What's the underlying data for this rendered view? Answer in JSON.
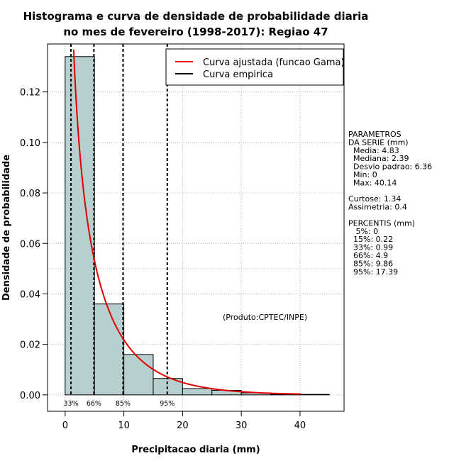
{
  "chart_data": {
    "type": "histogram",
    "title": [
      "Histograma e curva de densidade de probabilidade diaria",
      "no mes de fevereiro (1998-2017): Regiao 47"
    ],
    "xlabel": "Precipitacao diaria (mm)",
    "ylabel": "Densidade de probabilidade",
    "xlim": [
      -3,
      47.5
    ],
    "ylim": [
      -0.0065,
      0.139
    ],
    "x_ticks": [
      0,
      10,
      20,
      30,
      40
    ],
    "y_ticks": [
      0.0,
      0.02,
      0.04,
      0.06,
      0.08,
      0.1,
      0.12
    ],
    "y_tick_labels": [
      "0.00",
      "0.02",
      "0.04",
      "0.06",
      "0.08",
      "0.10",
      "0.12"
    ],
    "grid": true,
    "bins": [
      {
        "x0": 0,
        "x1": 5,
        "density": 0.134
      },
      {
        "x0": 5,
        "x1": 10,
        "density": 0.036
      },
      {
        "x0": 10,
        "x1": 15,
        "density": 0.016
      },
      {
        "x0": 15,
        "x1": 20,
        "density": 0.0065
      },
      {
        "x0": 20,
        "x1": 25,
        "density": 0.0025
      },
      {
        "x0": 25,
        "x1": 30,
        "density": 0.0018
      },
      {
        "x0": 30,
        "x1": 35,
        "density": 0.0008
      },
      {
        "x0": 35,
        "x1": 40,
        "density": 0.0003
      },
      {
        "x0": 40,
        "x1": 45,
        "density": 0.0002
      }
    ],
    "gamma_fit": {
      "shape": 0.58,
      "scale": 8.33,
      "x_start": 0.3,
      "x_end": 40.14
    },
    "percentile_lines": [
      {
        "label": "33%",
        "x": 0.99
      },
      {
        "label": "66%",
        "x": 4.9
      },
      {
        "label": "85%",
        "x": 9.86
      },
      {
        "label": "95%",
        "x": 17.39
      }
    ],
    "legend": [
      {
        "label": "Curva ajustada (funcao Gama)",
        "color": "#e00000"
      },
      {
        "label": "Curva empirica",
        "color": "#000000"
      }
    ],
    "legend_position": "top-right",
    "credit": "(Produto:CPTEC/INPE)",
    "colors": {
      "bar_fill": "#b7cfcf",
      "fit_line": "#e00000",
      "grid": "#b0b0b0"
    }
  },
  "stats_panel": {
    "lines": [
      "PARAMETROS",
      "DA SERIE (mm)",
      "  Media: 4.83",
      "  Mediana: 2.39",
      "  Desvio padrao: 6.36",
      "  Min: 0",
      "  Max: 40.14",
      "",
      "Curtose: 1.34",
      "Assimetria: 0.4",
      "",
      "PERCENTIS (mm)",
      "   5%: 0",
      "  15%: 0.22",
      "  33%: 0.99",
      "  66%: 4.9",
      "  85%: 9.86",
      "  95%: 17.39"
    ]
  }
}
